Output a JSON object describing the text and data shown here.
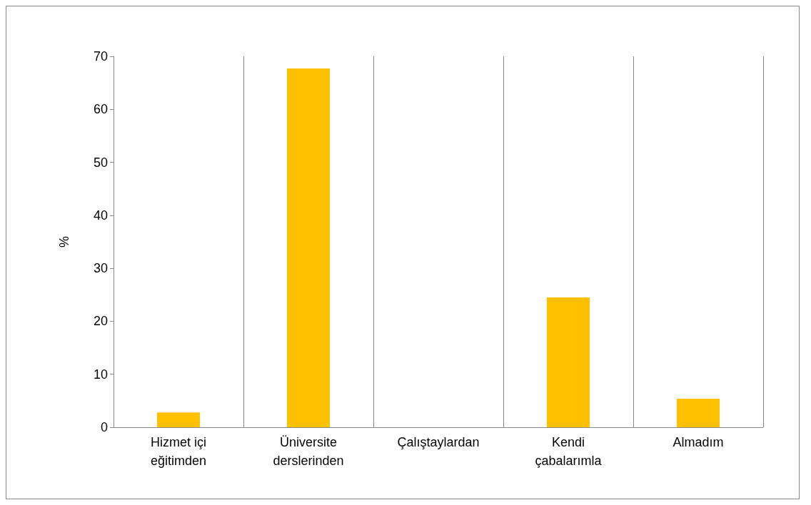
{
  "chart_data": {
    "type": "bar",
    "ylabel": "%",
    "categories": [
      "Hizmet içi\neğitimden",
      "Üniversite\nderslerinden",
      "Çalıştaylardan",
      "Kendi\nçabalarımla",
      "Almadım"
    ],
    "values": [
      2.8,
      67.7,
      0,
      24.5,
      5.4
    ],
    "color": "#ffc000",
    "ylim": [
      0,
      70
    ],
    "yticks": [
      0,
      10,
      20,
      30,
      40,
      50,
      60,
      70
    ],
    "grid": "x"
  }
}
